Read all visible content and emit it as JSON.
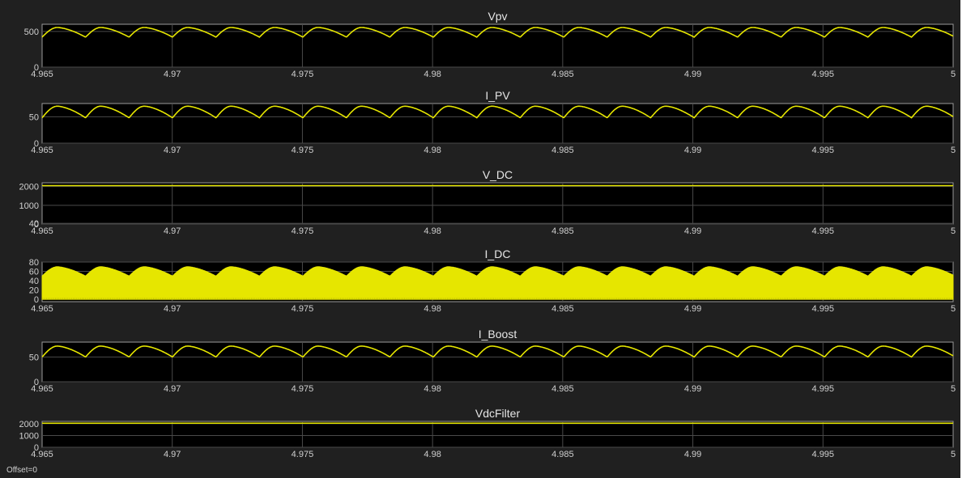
{
  "window": {
    "offset_label": "Offset=0"
  },
  "colors": {
    "background": "#202020",
    "axes": "#000000",
    "grid": "#4a4a4a",
    "trace": "#e6e600",
    "text": "#cfcfcf"
  },
  "chart_data": [
    {
      "type": "line",
      "title": "Vpv",
      "xlim": [
        4.965,
        5
      ],
      "ylim": [
        0,
        600
      ],
      "xticks": [
        4.965,
        4.97,
        4.975,
        4.98,
        4.985,
        4.99,
        4.995,
        5
      ],
      "xtick_labels": [
        "4.965",
        "4.97",
        "4.975",
        "4.98",
        "4.985",
        "4.99",
        "4.995",
        "5"
      ],
      "yticks": [
        0,
        500
      ],
      "ytick_labels": [
        "0",
        "500"
      ],
      "signal": {
        "form": "ripple",
        "ripple_period": 0.00167,
        "max": 555,
        "min": 420,
        "band": false
      }
    },
    {
      "type": "line",
      "title": "I_PV",
      "xlim": [
        4.965,
        5
      ],
      "ylim": [
        0,
        75
      ],
      "xticks": [
        4.965,
        4.97,
        4.975,
        4.98,
        4.985,
        4.99,
        4.995,
        5
      ],
      "xtick_labels": [
        "4.965",
        "4.97",
        "4.975",
        "4.98",
        "4.985",
        "4.99",
        "4.995",
        "5"
      ],
      "yticks": [
        0,
        50
      ],
      "ytick_labels": [
        "0",
        "50"
      ],
      "signal": {
        "form": "ripple",
        "ripple_period": 0.00167,
        "max": 70,
        "min": 48,
        "band": false
      }
    },
    {
      "type": "line",
      "title": "V_DC",
      "xlim": [
        4.965,
        5
      ],
      "ylim": [
        0,
        2200
      ],
      "xticks": [
        4.965,
        4.97,
        4.975,
        4.98,
        4.985,
        4.99,
        4.995,
        5
      ],
      "xtick_labels": [
        "4.965",
        "4.97",
        "4.975",
        "4.98",
        "4.985",
        "4.99",
        "4.995",
        "5"
      ],
      "yticks": [
        0,
        40,
        1000,
        2000
      ],
      "ytick_labels": [
        "0",
        "40",
        "1000",
        "2000"
      ],
      "signal": {
        "form": "flat",
        "value": 2050
      }
    },
    {
      "type": "area",
      "title": "I_DC",
      "xlim": [
        4.965,
        5
      ],
      "ylim": [
        -5,
        80
      ],
      "xticks": [
        4.965,
        4.97,
        4.975,
        4.98,
        4.985,
        4.99,
        4.995,
        5
      ],
      "xtick_labels": [
        "4.965",
        "4.97",
        "4.975",
        "4.98",
        "4.985",
        "4.99",
        "4.995",
        "5"
      ],
      "yticks": [
        0,
        20,
        40,
        60,
        80
      ],
      "ytick_labels": [
        "0",
        "20",
        "40",
        "60",
        "80"
      ],
      "signal": {
        "form": "ripple",
        "ripple_period": 0.00167,
        "max": 70,
        "min": 50,
        "band": true,
        "band_min": 0
      }
    },
    {
      "type": "line",
      "title": "I_Boost",
      "xlim": [
        4.965,
        5
      ],
      "ylim": [
        0,
        80
      ],
      "xticks": [
        4.965,
        4.97,
        4.975,
        4.98,
        4.985,
        4.99,
        4.995,
        5
      ],
      "xtick_labels": [
        "4.965",
        "4.97",
        "4.975",
        "4.98",
        "4.985",
        "4.99",
        "4.995",
        "5"
      ],
      "yticks": [
        0,
        50
      ],
      "ytick_labels": [
        "0",
        "50"
      ],
      "signal": {
        "form": "ripple",
        "ripple_period": 0.00167,
        "max": 72,
        "min": 50,
        "band": false
      }
    },
    {
      "type": "line",
      "title": "VdcFilter",
      "xlim": [
        4.965,
        5
      ],
      "ylim": [
        0,
        2200
      ],
      "xticks": [
        4.965,
        4.97,
        4.975,
        4.98,
        4.985,
        4.99,
        4.995,
        5
      ],
      "xtick_labels": [
        "4.965",
        "4.97",
        "4.975",
        "4.98",
        "4.985",
        "4.99",
        "4.995",
        "5"
      ],
      "yticks": [
        0,
        1000,
        2000
      ],
      "ytick_labels": [
        "0",
        "1000",
        "2000"
      ],
      "signal": {
        "form": "flat",
        "value": 2050
      }
    }
  ]
}
